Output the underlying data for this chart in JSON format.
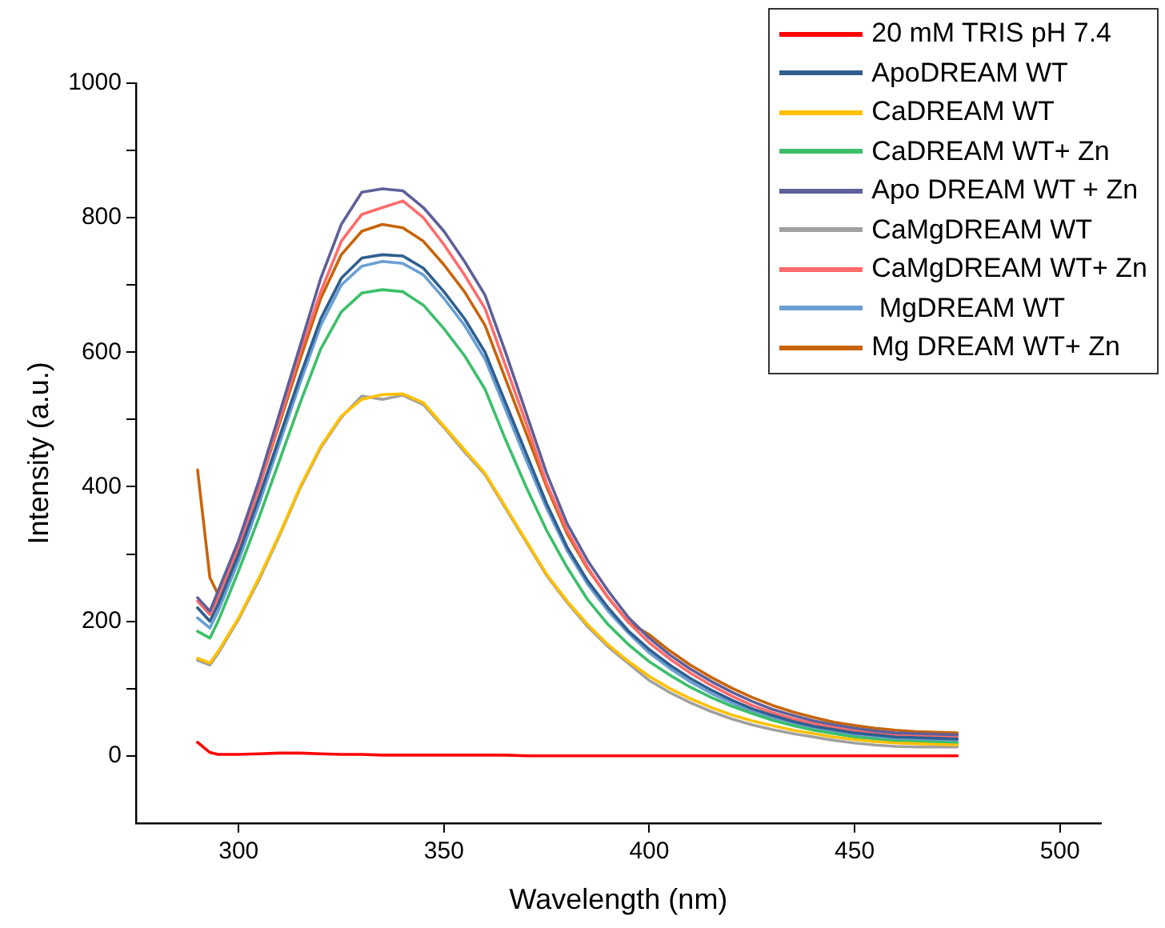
{
  "chart_data": {
    "type": "line",
    "xlabel": "Wavelength (nm)",
    "ylabel": "Intensity (a.u.)",
    "xlim": [
      275,
      510
    ],
    "xticks": [
      300,
      350,
      400,
      450,
      500
    ],
    "ylim": [
      -100,
      1000
    ],
    "yticks": [
      0,
      {
        "value": 100,
        "label": null
      },
      200,
      {
        "value": 300,
        "label": null
      },
      400,
      {
        "value": 500,
        "label": null
      },
      600,
      {
        "value": 700,
        "label": null
      },
      800,
      {
        "value": 900,
        "label": null
      },
      1000
    ],
    "grid": false,
    "legend": "top right",
    "marker": "none",
    "line_style": "solid",
    "x": [
      290,
      293,
      295,
      300,
      305,
      310,
      315,
      320,
      325,
      330,
      335,
      340,
      345,
      350,
      355,
      360,
      365,
      370,
      375,
      380,
      385,
      390,
      395,
      400,
      405,
      410,
      415,
      420,
      425,
      430,
      435,
      440,
      445,
      450,
      455,
      460,
      465,
      470,
      475
    ],
    "series": [
      {
        "name": "20 mM TRIS pH 7.4",
        "color": "#ff0000",
        "values": [
          20,
          5,
          2,
          2,
          3,
          4,
          4,
          3,
          2,
          2,
          1,
          1,
          1,
          1,
          1,
          1,
          1,
          0,
          0,
          0,
          0,
          0,
          0,
          0,
          0,
          0,
          0,
          0,
          0,
          0,
          0,
          0,
          0,
          0,
          0,
          0,
          0,
          0,
          0
        ]
      },
      {
        "name": "ApoDREAM WT",
        "color": "#2f5f8f",
        "values": [
          220,
          200,
          225,
          300,
          385,
          475,
          565,
          650,
          710,
          740,
          745,
          743,
          725,
          690,
          650,
          600,
          525,
          450,
          375,
          310,
          260,
          220,
          185,
          158,
          135,
          115,
          98,
          83,
          70,
          60,
          51,
          44,
          39,
          34,
          31,
          28,
          27,
          26,
          25
        ]
      },
      {
        "name": "CaDREAM WT",
        "color": "#ffc000",
        "values": [
          145,
          138,
          155,
          205,
          265,
          330,
          400,
          460,
          505,
          530,
          537,
          538,
          525,
          490,
          455,
          420,
          370,
          320,
          270,
          230,
          195,
          165,
          140,
          118,
          100,
          85,
          72,
          61,
          52,
          45,
          38,
          33,
          28,
          24,
          21,
          19,
          18,
          17,
          16
        ]
      },
      {
        "name": "CaDREAM WT+ Zn",
        "color": "#3cbf6a",
        "values": [
          185,
          175,
          200,
          275,
          355,
          440,
          525,
          605,
          660,
          688,
          693,
          690,
          670,
          635,
          595,
          545,
          470,
          400,
          335,
          280,
          232,
          195,
          165,
          140,
          120,
          102,
          87,
          74,
          63,
          53,
          45,
          38,
          33,
          28,
          25,
          22,
          21,
          20,
          19
        ]
      },
      {
        "name": "Apo DREAM WT + Zn",
        "color": "#5f5f99",
        "values": [
          235,
          215,
          245,
          320,
          410,
          510,
          610,
          710,
          790,
          838,
          843,
          840,
          815,
          780,
          735,
          685,
          600,
          510,
          420,
          345,
          290,
          245,
          205,
          175,
          150,
          129,
          111,
          95,
          81,
          69,
          60,
          52,
          46,
          41,
          37,
          34,
          33,
          32,
          31
        ]
      },
      {
        "name": "CaMgDREAM WT",
        "color": "#a0a0a0",
        "values": [
          142,
          135,
          152,
          203,
          262,
          328,
          398,
          458,
          503,
          535,
          530,
          536,
          522,
          488,
          452,
          418,
          368,
          318,
          268,
          228,
          192,
          162,
          137,
          112,
          94,
          79,
          66,
          55,
          46,
          39,
          33,
          28,
          23,
          19,
          16,
          14,
          13,
          13,
          13
        ]
      },
      {
        "name": "CaMgDREAM WT+ Zn",
        "color": "#ff6b6b",
        "values": [
          230,
          210,
          235,
          310,
          400,
          500,
          600,
          690,
          765,
          805,
          815,
          825,
          800,
          760,
          715,
          665,
          580,
          495,
          405,
          335,
          280,
          235,
          198,
          168,
          144,
          123,
          105,
          89,
          75,
          64,
          55,
          48,
          42,
          37,
          34,
          31,
          30,
          29,
          28
        ]
      },
      {
        "name": " MgDREAM WT",
        "color": "#6a9fd4",
        "values": [
          205,
          190,
          215,
          290,
          375,
          465,
          555,
          640,
          700,
          728,
          735,
          732,
          715,
          680,
          640,
          590,
          515,
          440,
          368,
          305,
          255,
          215,
          182,
          153,
          130,
          110,
          93,
          79,
          66,
          56,
          48,
          41,
          36,
          31,
          28,
          25,
          24,
          23,
          22
        ]
      },
      {
        "name": "Mg DREAM WT+ Zn",
        "color": "#c8640a",
        "values": [
          425,
          265,
          240,
          310,
          400,
          495,
          590,
          680,
          745,
          780,
          790,
          785,
          765,
          730,
          690,
          640,
          560,
          480,
          400,
          330,
          278,
          235,
          198,
          180,
          156,
          135,
          117,
          101,
          87,
          75,
          65,
          57,
          50,
          45,
          41,
          38,
          36,
          35,
          34
        ]
      }
    ]
  }
}
